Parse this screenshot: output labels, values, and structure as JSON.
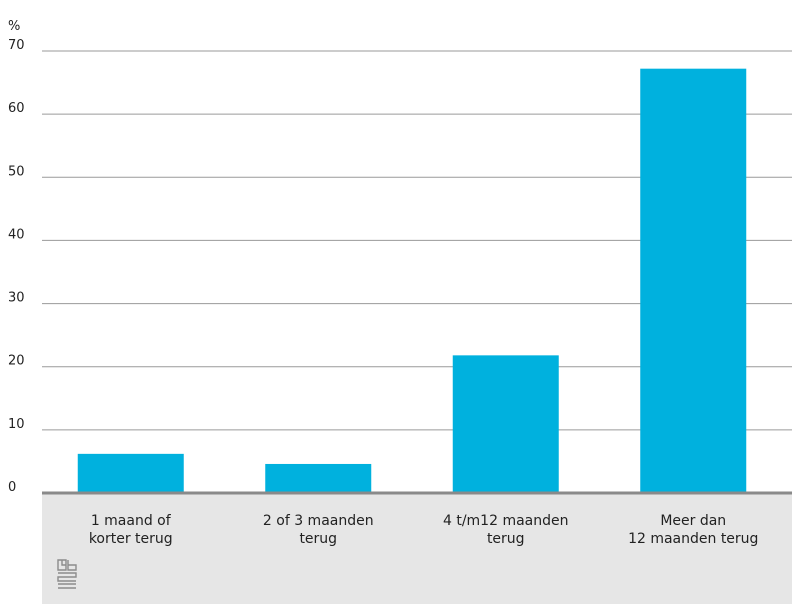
{
  "chart_data": {
    "type": "bar",
    "unit_label": "%",
    "categories": [
      "1 maand of\nkorter terug",
      "2 of 3 maanden\nterug",
      "4 t/m12 maanden\nterug",
      "Meer dan\n12 maanden terug"
    ],
    "values": [
      6.2,
      4.6,
      21.8,
      67.2
    ],
    "ylim": [
      0,
      70
    ],
    "yticks": [
      "0",
      "10",
      "20",
      "30",
      "40",
      "50",
      "60",
      "70"
    ],
    "grid": true,
    "bar_color": "#00b1de",
    "grid_color": "#9a9a9a",
    "baseline_color": "#8a8a8a",
    "footer_color": "#e6e6e6"
  },
  "logo": {
    "icon": "cbs-logo-icon"
  }
}
